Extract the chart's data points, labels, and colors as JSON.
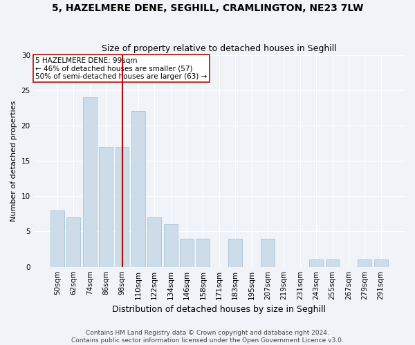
{
  "title": "5, HAZELMERE DENE, SEGHILL, CRAMLINGTON, NE23 7LW",
  "subtitle": "Size of property relative to detached houses in Seghill",
  "xlabel": "Distribution of detached houses by size in Seghill",
  "ylabel": "Number of detached properties",
  "categories": [
    "50sqm",
    "62sqm",
    "74sqm",
    "86sqm",
    "98sqm",
    "110sqm",
    "122sqm",
    "134sqm",
    "146sqm",
    "158sqm",
    "171sqm",
    "183sqm",
    "195sqm",
    "207sqm",
    "219sqm",
    "231sqm",
    "243sqm",
    "255sqm",
    "267sqm",
    "279sqm",
    "291sqm"
  ],
  "values": [
    8,
    7,
    24,
    17,
    17,
    22,
    7,
    6,
    4,
    4,
    0,
    4,
    0,
    4,
    0,
    0,
    1,
    1,
    0,
    1,
    1
  ],
  "bar_color": "#ccdce8",
  "bar_edgecolor": "#a8c4d8",
  "vline_x_index": 4,
  "vline_color": "#cc0000",
  "annotation_text": "5 HAZELMERE DENE: 99sqm\n← 46% of detached houses are smaller (57)\n50% of semi-detached houses are larger (63) →",
  "annotation_box_edgecolor": "#cc0000",
  "ylim": [
    0,
    30
  ],
  "yticks": [
    0,
    5,
    10,
    15,
    20,
    25,
    30
  ],
  "background_color": "#f0f4f8",
  "plot_background_color": "#f0f4f8",
  "grid_color": "#ffffff",
  "footer": "Contains HM Land Registry data © Crown copyright and database right 2024.\nContains public sector information licensed under the Open Government Licence v3.0.",
  "title_fontsize": 10,
  "subtitle_fontsize": 9,
  "xlabel_fontsize": 9,
  "ylabel_fontsize": 8,
  "tick_fontsize": 7.5,
  "annotation_fontsize": 7.5,
  "footer_fontsize": 6.5
}
